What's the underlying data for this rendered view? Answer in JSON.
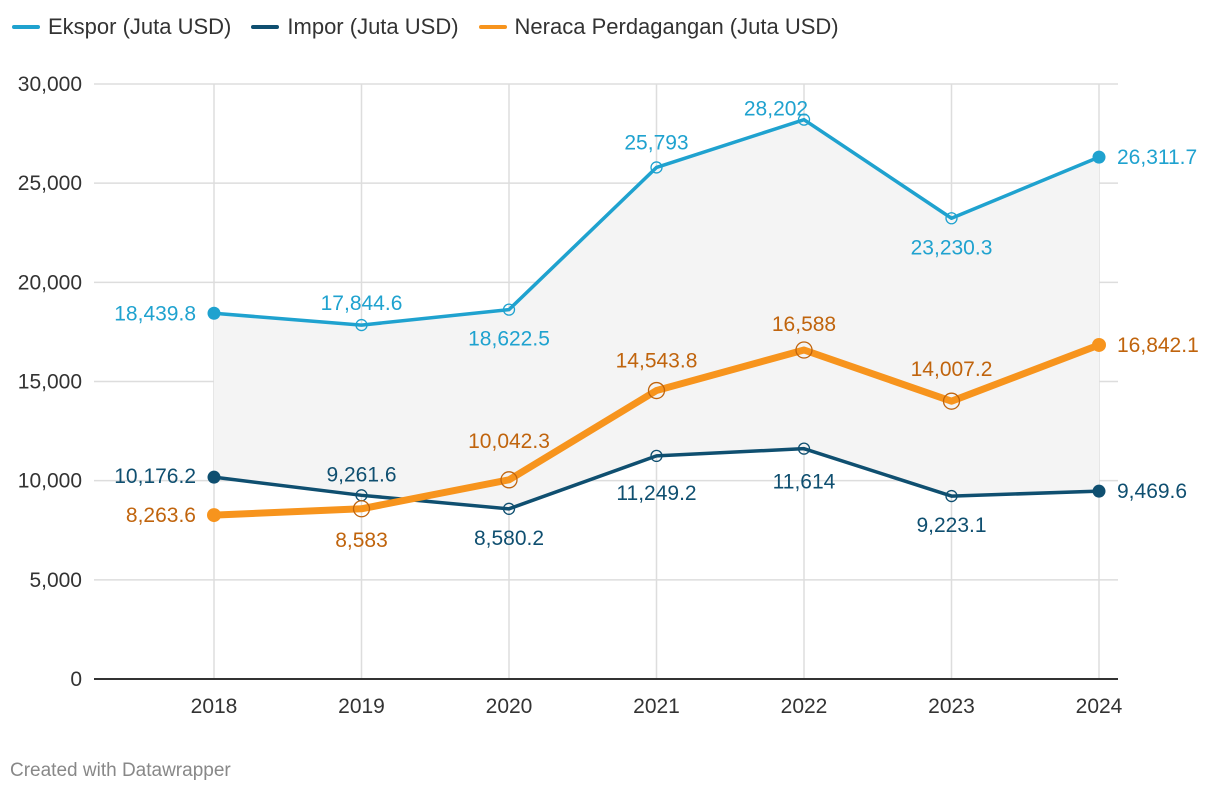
{
  "chart_data": {
    "type": "line",
    "x": [
      "2018",
      "2019",
      "2020",
      "2021",
      "2022",
      "2023",
      "2024"
    ],
    "ylim": [
      0,
      30000
    ],
    "yticks": [
      0,
      5000,
      10000,
      15000,
      20000,
      25000,
      30000
    ],
    "ytick_labels": [
      "0",
      "5,000",
      "10,000",
      "15,000",
      "20,000",
      "25,000",
      "30,000"
    ],
    "grid": true,
    "legend_position": "top-left",
    "shaded_range_between": [
      "Ekspor (Juta USD)",
      "Impor (Juta USD)"
    ],
    "series": [
      {
        "name": "Ekspor (Juta USD)",
        "color": "#1fa2cf",
        "values": [
          18439.8,
          17844.6,
          18622.5,
          25793,
          28202,
          23230.3,
          26311.7
        ],
        "labels": [
          "18,439.8",
          "17,844.6",
          "18,622.5",
          "25,793",
          "28,202",
          "23,230.3",
          "26,311.7"
        ]
      },
      {
        "name": "Impor (Juta USD)",
        "color": "#0f4f70",
        "values": [
          10176.2,
          9261.6,
          8580.2,
          11249.2,
          11614,
          9223.1,
          9469.6
        ],
        "labels": [
          "10,176.2",
          "9,261.6",
          "8,580.2",
          "11,249.2",
          "11,614",
          "9,223.1",
          "9,469.6"
        ]
      },
      {
        "name": "Neraca Perdagangan (Juta USD)",
        "color": "#f7941d",
        "label_color": "#c0640d",
        "values": [
          8263.6,
          8583,
          10042.3,
          14543.8,
          16588,
          14007.2,
          16842.1
        ],
        "labels": [
          "8,263.6",
          "8,583",
          "10,042.3",
          "14,543.8",
          "16,588",
          "14,007.2",
          "16,842.1"
        ]
      }
    ]
  },
  "footer": {
    "credit": "Created with Datawrapper"
  }
}
